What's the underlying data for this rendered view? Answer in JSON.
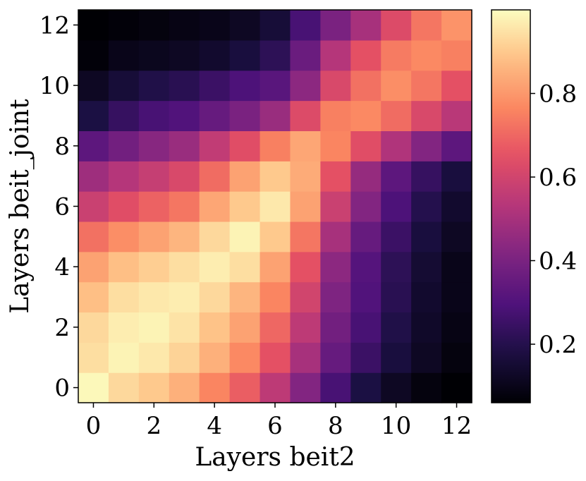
{
  "chart_data": {
    "type": "heatmap",
    "xlabel": "Layers beit2",
    "ylabel": "Layers beit_joint",
    "x": [
      0,
      1,
      2,
      3,
      4,
      5,
      6,
      7,
      8,
      9,
      10,
      11,
      12
    ],
    "y": [
      0,
      1,
      2,
      3,
      4,
      5,
      6,
      7,
      8,
      9,
      10,
      11,
      12
    ],
    "x_ticks": [
      "0",
      "2",
      "4",
      "6",
      "8",
      "10",
      "12"
    ],
    "y_ticks": [
      "0",
      "2",
      "4",
      "6",
      "8",
      "10",
      "12"
    ],
    "colorbar": {
      "range": [
        0.06,
        1.0
      ],
      "ticks": [
        "0.2",
        "0.4",
        "0.6",
        "0.8"
      ],
      "tick_values": [
        0.2,
        0.4,
        0.6,
        0.8
      ],
      "colormap": "magma"
    },
    "z": [
      [
        0.99,
        0.93,
        0.9,
        0.85,
        0.76,
        0.68,
        0.55,
        0.42,
        0.28,
        0.18,
        0.12,
        0.08,
        0.06
      ],
      [
        0.94,
        0.98,
        0.96,
        0.92,
        0.85,
        0.77,
        0.65,
        0.5,
        0.35,
        0.25,
        0.17,
        0.12,
        0.08
      ],
      [
        0.93,
        0.97,
        0.98,
        0.95,
        0.89,
        0.82,
        0.7,
        0.55,
        0.38,
        0.28,
        0.19,
        0.13,
        0.09
      ],
      [
        0.88,
        0.94,
        0.96,
        0.97,
        0.93,
        0.86,
        0.76,
        0.6,
        0.41,
        0.3,
        0.21,
        0.14,
        0.1
      ],
      [
        0.82,
        0.88,
        0.91,
        0.94,
        0.97,
        0.94,
        0.82,
        0.65,
        0.44,
        0.31,
        0.22,
        0.15,
        0.1
      ],
      [
        0.72,
        0.78,
        0.82,
        0.86,
        0.93,
        0.98,
        0.9,
        0.73,
        0.5,
        0.35,
        0.25,
        0.17,
        0.12
      ],
      [
        0.58,
        0.64,
        0.69,
        0.73,
        0.83,
        0.9,
        0.96,
        0.82,
        0.58,
        0.42,
        0.29,
        0.2,
        0.14
      ],
      [
        0.48,
        0.53,
        0.57,
        0.62,
        0.71,
        0.82,
        0.9,
        0.84,
        0.65,
        0.46,
        0.33,
        0.24,
        0.17
      ],
      [
        0.33,
        0.38,
        0.43,
        0.47,
        0.56,
        0.64,
        0.75,
        0.83,
        0.76,
        0.64,
        0.52,
        0.42,
        0.33
      ],
      [
        0.18,
        0.24,
        0.28,
        0.3,
        0.35,
        0.4,
        0.47,
        0.63,
        0.75,
        0.77,
        0.71,
        0.62,
        0.54
      ],
      [
        0.12,
        0.16,
        0.19,
        0.21,
        0.25,
        0.29,
        0.32,
        0.44,
        0.62,
        0.72,
        0.78,
        0.73,
        0.65
      ],
      [
        0.07,
        0.1,
        0.11,
        0.12,
        0.14,
        0.17,
        0.22,
        0.36,
        0.53,
        0.65,
        0.74,
        0.77,
        0.75
      ],
      [
        0.06,
        0.07,
        0.08,
        0.09,
        0.1,
        0.12,
        0.16,
        0.28,
        0.4,
        0.5,
        0.63,
        0.73,
        0.79
      ]
    ]
  }
}
